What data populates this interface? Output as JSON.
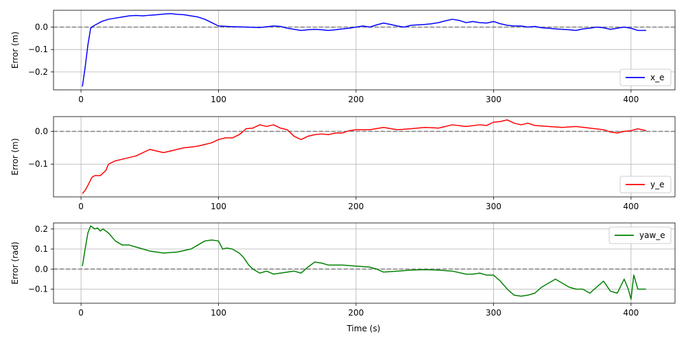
{
  "figure": {
    "xlabel": "Time (s)"
  },
  "chart_data": [
    {
      "type": "line",
      "ylabel": "Error (m)",
      "xlim": [
        -20,
        432
      ],
      "ylim": [
        -0.28,
        0.075
      ],
      "xticks": [
        0,
        100,
        200,
        300,
        400
      ],
      "yticks": [
        0.0,
        -0.1,
        -0.2
      ],
      "ytick_labels": [
        "0.0",
        "−0.1",
        "−0.2"
      ],
      "grid": true,
      "legend_position": "lower-right",
      "reference_line": {
        "y": 0,
        "color": "#808080",
        "style": "dashed"
      },
      "series": [
        {
          "name": "x_e",
          "color": "#0000ff",
          "x": [
            1,
            3,
            5,
            7,
            9,
            12,
            15,
            20,
            25,
            30,
            35,
            40,
            45,
            50,
            55,
            60,
            65,
            70,
            75,
            80,
            85,
            90,
            95,
            100,
            110,
            120,
            130,
            140,
            145,
            150,
            155,
            160,
            165,
            170,
            175,
            180,
            185,
            190,
            195,
            200,
            205,
            210,
            215,
            220,
            225,
            230,
            235,
            240,
            245,
            250,
            255,
            260,
            265,
            270,
            275,
            280,
            285,
            290,
            295,
            300,
            305,
            310,
            315,
            320,
            325,
            330,
            335,
            340,
            345,
            350,
            355,
            360,
            365,
            370,
            375,
            380,
            385,
            390,
            395,
            400,
            405,
            411
          ],
          "values": [
            -0.265,
            -0.18,
            -0.08,
            -0.005,
            0.005,
            0.015,
            0.025,
            0.035,
            0.04,
            0.045,
            0.05,
            0.052,
            0.05,
            0.053,
            0.055,
            0.058,
            0.06,
            0.057,
            0.055,
            0.05,
            0.045,
            0.035,
            0.02,
            0.005,
            0.002,
            0.0,
            -0.002,
            0.005,
            0.003,
            -0.005,
            -0.01,
            -0.015,
            -0.012,
            -0.01,
            -0.012,
            -0.015,
            -0.012,
            -0.008,
            -0.005,
            0.0,
            0.005,
            0.0,
            0.01,
            0.018,
            0.012,
            0.005,
            0.0,
            0.008,
            0.01,
            0.012,
            0.015,
            0.02,
            0.028,
            0.035,
            0.03,
            0.02,
            0.025,
            0.02,
            0.018,
            0.025,
            0.015,
            0.008,
            0.005,
            0.005,
            0.0,
            0.003,
            -0.003,
            -0.005,
            -0.008,
            -0.01,
            -0.012,
            -0.015,
            -0.008,
            -0.005,
            0.0,
            -0.003,
            -0.01,
            -0.005,
            0.0,
            -0.005,
            -0.015,
            -0.015
          ]
        }
      ]
    },
    {
      "type": "line",
      "ylabel": "Error (m)",
      "xlim": [
        -20,
        432
      ],
      "ylim": [
        -0.2,
        0.045
      ],
      "xticks": [
        0,
        100,
        200,
        300,
        400
      ],
      "yticks": [
        0.0,
        -0.1
      ],
      "ytick_labels": [
        "0.0",
        "−0.1"
      ],
      "grid": true,
      "legend_position": "lower-right",
      "reference_line": {
        "y": 0,
        "color": "#808080",
        "style": "dashed"
      },
      "series": [
        {
          "name": "y_e",
          "color": "#ff0000",
          "x": [
            1,
            3,
            5,
            8,
            10,
            14,
            18,
            20,
            25,
            30,
            35,
            40,
            45,
            50,
            55,
            60,
            65,
            70,
            75,
            80,
            85,
            90,
            95,
            100,
            105,
            110,
            115,
            118,
            120,
            125,
            130,
            135,
            140,
            145,
            150,
            155,
            160,
            165,
            170,
            175,
            180,
            185,
            190,
            195,
            200,
            210,
            220,
            230,
            240,
            250,
            260,
            270,
            280,
            290,
            295,
            300,
            305,
            310,
            315,
            320,
            325,
            330,
            340,
            350,
            360,
            370,
            380,
            385,
            390,
            395,
            400,
            405,
            411
          ],
          "values": [
            -0.19,
            -0.18,
            -0.165,
            -0.14,
            -0.135,
            -0.135,
            -0.12,
            -0.1,
            -0.09,
            -0.085,
            -0.08,
            -0.075,
            -0.065,
            -0.055,
            -0.06,
            -0.065,
            -0.06,
            -0.055,
            -0.05,
            -0.048,
            -0.045,
            -0.04,
            -0.035,
            -0.025,
            -0.02,
            -0.02,
            -0.01,
            0.0,
            0.008,
            0.01,
            0.02,
            0.015,
            0.02,
            0.01,
            0.005,
            -0.015,
            -0.025,
            -0.015,
            -0.01,
            -0.008,
            -0.01,
            -0.005,
            -0.005,
            0.002,
            0.005,
            0.005,
            0.012,
            0.005,
            0.008,
            0.012,
            0.01,
            0.02,
            0.015,
            0.02,
            0.018,
            0.028,
            0.03,
            0.035,
            0.025,
            0.02,
            0.025,
            0.018,
            0.015,
            0.012,
            0.015,
            0.01,
            0.005,
            -0.002,
            -0.005,
            0.0,
            0.002,
            0.008,
            0.002
          ]
        }
      ]
    },
    {
      "type": "line",
      "ylabel": "Error (rad)",
      "xlabel": "Time (s)",
      "xlim": [
        -20,
        432
      ],
      "ylim": [
        -0.17,
        0.23
      ],
      "xticks": [
        0,
        100,
        200,
        300,
        400
      ],
      "yticks": [
        0.2,
        0.1,
        0.0,
        -0.1
      ],
      "ytick_labels": [
        "0.2",
        "0.1",
        "0.0",
        "−0.1"
      ],
      "grid": true,
      "legend_position": "upper-right",
      "reference_line": {
        "y": 0,
        "color": "#808080",
        "style": "dashed"
      },
      "series": [
        {
          "name": "yaw_e",
          "color": "#008000",
          "x": [
            1,
            3,
            5,
            7,
            10,
            12,
            14,
            16,
            20,
            25,
            30,
            35,
            40,
            45,
            50,
            60,
            70,
            80,
            85,
            90,
            95,
            100,
            103,
            106,
            110,
            115,
            118,
            120,
            122,
            125,
            130,
            135,
            140,
            145,
            150,
            155,
            160,
            165,
            170,
            175,
            180,
            190,
            200,
            210,
            215,
            220,
            230,
            240,
            250,
            260,
            270,
            280,
            285,
            290,
            295,
            300,
            305,
            310,
            315,
            320,
            325,
            330,
            335,
            340,
            345,
            350,
            355,
            360,
            365,
            370,
            375,
            380,
            385,
            390,
            395,
            398,
            400,
            402,
            405,
            411
          ],
          "values": [
            0.015,
            0.1,
            0.18,
            0.215,
            0.2,
            0.205,
            0.19,
            0.2,
            0.18,
            0.14,
            0.12,
            0.12,
            0.11,
            0.1,
            0.09,
            0.08,
            0.085,
            0.1,
            0.12,
            0.14,
            0.145,
            0.14,
            0.1,
            0.105,
            0.1,
            0.08,
            0.06,
            0.04,
            0.02,
            0.0,
            -0.02,
            -0.01,
            -0.025,
            -0.02,
            -0.015,
            -0.01,
            -0.02,
            0.01,
            0.035,
            0.03,
            0.02,
            0.02,
            0.015,
            0.01,
            0.0,
            -0.015,
            -0.01,
            -0.005,
            -0.003,
            -0.005,
            -0.01,
            -0.025,
            -0.025,
            -0.02,
            -0.03,
            -0.03,
            -0.06,
            -0.1,
            -0.13,
            -0.135,
            -0.13,
            -0.12,
            -0.09,
            -0.07,
            -0.05,
            -0.07,
            -0.09,
            -0.1,
            -0.1,
            -0.12,
            -0.09,
            -0.06,
            -0.11,
            -0.12,
            -0.05,
            -0.1,
            -0.15,
            -0.03,
            -0.1,
            -0.1
          ]
        }
      ]
    }
  ]
}
